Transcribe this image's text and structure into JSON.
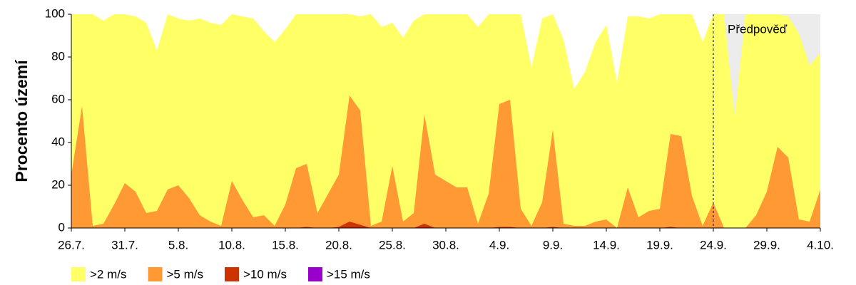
{
  "chart_data": {
    "type": "area",
    "y_label": "Procento území",
    "categories": [
      "26.7.",
      null,
      null,
      null,
      null,
      "31.7.",
      null,
      null,
      null,
      null,
      "5.8.",
      null,
      null,
      null,
      null,
      "10.8.",
      null,
      null,
      null,
      null,
      "15.8.",
      null,
      null,
      null,
      null,
      "20.8.",
      null,
      null,
      null,
      null,
      "25.8.",
      null,
      null,
      null,
      null,
      "30.8.",
      null,
      null,
      null,
      null,
      "4.9.",
      null,
      null,
      null,
      null,
      "9.9.",
      null,
      null,
      null,
      null,
      "14.9.",
      null,
      null,
      null,
      null,
      "19.9.",
      null,
      null,
      null,
      null,
      "24.9.",
      null,
      null,
      null,
      null,
      "29.9.",
      null,
      null,
      null,
      null,
      "4.10."
    ],
    "series": [
      {
        "name": ">2 m/s",
        "color": "#ffff66",
        "values": [
          100,
          100,
          100,
          97,
          100,
          100,
          99,
          96,
          83,
          100,
          98,
          97,
          98,
          96,
          95,
          100,
          99,
          98,
          92,
          87,
          93,
          100,
          100,
          100,
          100,
          100,
          100,
          99,
          100,
          94,
          96,
          89,
          97,
          100,
          100,
          100,
          100,
          100,
          94,
          100,
          100,
          100,
          100,
          75,
          98,
          100,
          88,
          65,
          73,
          87,
          95,
          68,
          99,
          99,
          98,
          100,
          100,
          100,
          100,
          87,
          100,
          100,
          52,
          100,
          100,
          100,
          100,
          99,
          91,
          76,
          82
        ]
      },
      {
        "name": ">5 m/s",
        "color": "#ff9933",
        "values": [
          25,
          57,
          1,
          2,
          11,
          21,
          17,
          7,
          8,
          18,
          20,
          14,
          6,
          3,
          1,
          22,
          13,
          5,
          6,
          1,
          11,
          28,
          30,
          7,
          16,
          25,
          62,
          55,
          1,
          3,
          29,
          3,
          7,
          53,
          25,
          22,
          19,
          19,
          2,
          16,
          58,
          60,
          9,
          1,
          12,
          46,
          2,
          1,
          1,
          3,
          4,
          0,
          19,
          5,
          8,
          9,
          44,
          43,
          15,
          1,
          12,
          0,
          0,
          0,
          6,
          17,
          38,
          33,
          4,
          3,
          18
        ]
      },
      {
        "name": ">10 m/s",
        "color": "#cc3300",
        "values": [
          0,
          0,
          0,
          0,
          0,
          0,
          0,
          0,
          0,
          0,
          0,
          0,
          0,
          0,
          0,
          0,
          0,
          0,
          0,
          0,
          0,
          0,
          0.5,
          0,
          0,
          0.5,
          3,
          1.5,
          0,
          0,
          0,
          0,
          0,
          2,
          0,
          0,
          0,
          0,
          0,
          0,
          0.5,
          0.5,
          0,
          0,
          0,
          0.5,
          0,
          0,
          0,
          0,
          0,
          0,
          0,
          0,
          0,
          0,
          0.5,
          0,
          0,
          0,
          0,
          0,
          0,
          0,
          0,
          0,
          0,
          0,
          0,
          0,
          0
        ]
      },
      {
        "name": ">15 m/s",
        "color": "#9900cc",
        "values": [
          0,
          0,
          0,
          0,
          0,
          0,
          0,
          0,
          0,
          0,
          0,
          0,
          0,
          0,
          0,
          0,
          0,
          0,
          0,
          0,
          0,
          0,
          0,
          0,
          0,
          0,
          0,
          0,
          0,
          0,
          0,
          0,
          0,
          0,
          0,
          0,
          0,
          0,
          0,
          0,
          0,
          0,
          0,
          0,
          0,
          0,
          0,
          0,
          0,
          0,
          0,
          0,
          0,
          0,
          0,
          0,
          0,
          0,
          0,
          0,
          0,
          0,
          0,
          0,
          0,
          0,
          0,
          0,
          0,
          0,
          0
        ]
      }
    ],
    "ylim": [
      0,
      100
    ],
    "yticks": [
      0,
      20,
      40,
      60,
      80,
      100
    ],
    "annotation": {
      "text": "Předpověď",
      "x": "24.9.",
      "color": "#ececec"
    }
  }
}
